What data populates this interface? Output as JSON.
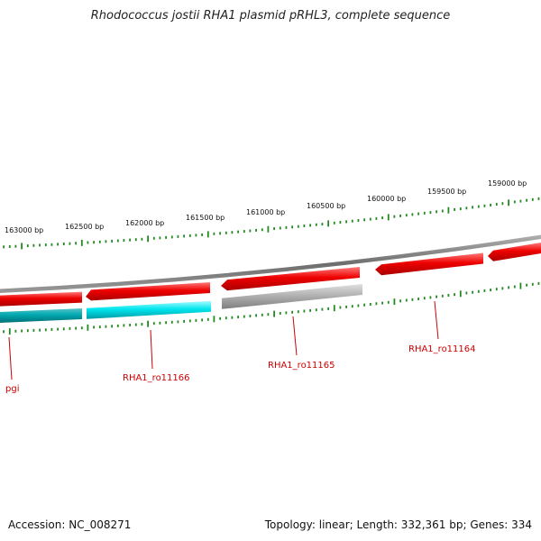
{
  "title": "Rhodococcus jostii RHA1 plasmid pRHL3, complete sequence",
  "footer": {
    "accession": "Accession: NC_008271",
    "stats": "Topology: linear; Length: 332,361 bp; Genes: 334"
  },
  "map": {
    "tick_labels": [
      "163000 bp",
      "162500 bp",
      "162000 bp",
      "161500 bp",
      "161000 bp",
      "160500 bp",
      "160000 bp",
      "159500 bp",
      "159000 bp"
    ],
    "gene_labels": [
      "pgi",
      "RHA1_ro11166",
      "RHA1_ro11165",
      "RHA1_ro11164"
    ],
    "colors": {
      "tick": "#228b22",
      "backbone": "#7a7a7a",
      "gene_red": "#ee0000",
      "gene_cyan": "#00e0e8",
      "gene_grey": "#aaaaaa",
      "label": "#cc0000"
    }
  }
}
